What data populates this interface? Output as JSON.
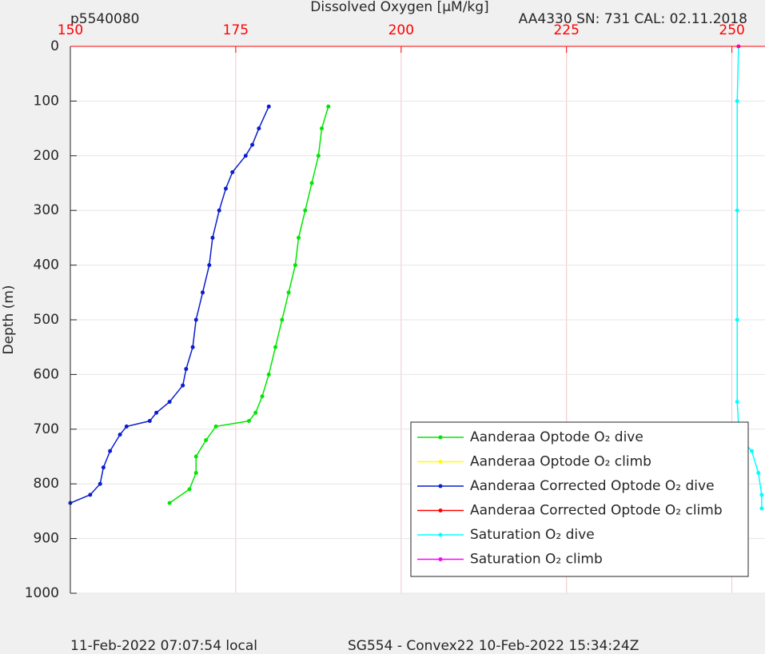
{
  "chart_data": {
    "type": "line",
    "title": "Dissolved Oxygen [μM/kg]",
    "title_color": "#ff0000",
    "top_left_text": "p5540080",
    "top_right_text": "AA4330   SN: 731   CAL: 02.11.2018",
    "footer_left": "11-Feb-2022 07:07:54 local",
    "footer_right": "SG554 - Convex22 10-Feb-2022 15:34:24Z",
    "y_label": "Depth (m)",
    "xlim": [
      150,
      255
    ],
    "xticks": [
      150,
      175,
      200,
      225,
      250
    ],
    "x_axis_position": "top",
    "ylim": [
      0,
      1000
    ],
    "yticks": [
      0,
      100,
      200,
      300,
      400,
      500,
      600,
      700,
      800,
      900,
      1000
    ],
    "y_reversed": true,
    "grid": true,
    "legend": "lower right",
    "series": [
      {
        "name": "Aanderaa Optode O₂ dive",
        "color": "#00e600",
        "x": [
          189,
          188,
          187.5,
          186.5,
          185.5,
          184.5,
          184,
          183,
          182,
          181,
          180,
          179,
          178,
          177,
          172,
          170.5,
          169,
          169,
          168,
          165
        ],
        "y": [
          110,
          150,
          200,
          250,
          300,
          350,
          400,
          450,
          500,
          550,
          600,
          640,
          670,
          685,
          695,
          720,
          750,
          780,
          810,
          835
        ]
      },
      {
        "name": "Aanderaa Optode O₂ climb",
        "color": "#ffff00",
        "x": [],
        "y": []
      },
      {
        "name": "Aanderaa Corrected Optode O₂ dive",
        "color": "#0a1ecf",
        "x": [
          180,
          178.5,
          177.5,
          176.5,
          174.5,
          173.5,
          172.5,
          171.5,
          171,
          170,
          169,
          168.5,
          167.5,
          167,
          165,
          163,
          162,
          158.5,
          157.5,
          156,
          155,
          154.5,
          153,
          150
        ],
        "y": [
          110,
          150,
          180,
          200,
          230,
          260,
          300,
          350,
          400,
          450,
          500,
          550,
          590,
          620,
          650,
          670,
          685,
          695,
          710,
          740,
          770,
          800,
          820,
          835
        ]
      },
      {
        "name": "Aanderaa Corrected Optode O₂ climb",
        "color": "#ff0000",
        "x": [],
        "y": []
      },
      {
        "name": "Saturation O₂ dive",
        "color": "#00ffff",
        "x": [
          251,
          250.8,
          250.8,
          250.8,
          250.8,
          251,
          251.5,
          253,
          254,
          254.5,
          254.5
        ],
        "y": [
          0,
          100,
          300,
          500,
          650,
          690,
          720,
          740,
          780,
          820,
          845
        ]
      },
      {
        "name": "Saturation O₂ climb",
        "color": "#ff00ff",
        "x": [
          251
        ],
        "y": [
          0
        ]
      }
    ]
  }
}
